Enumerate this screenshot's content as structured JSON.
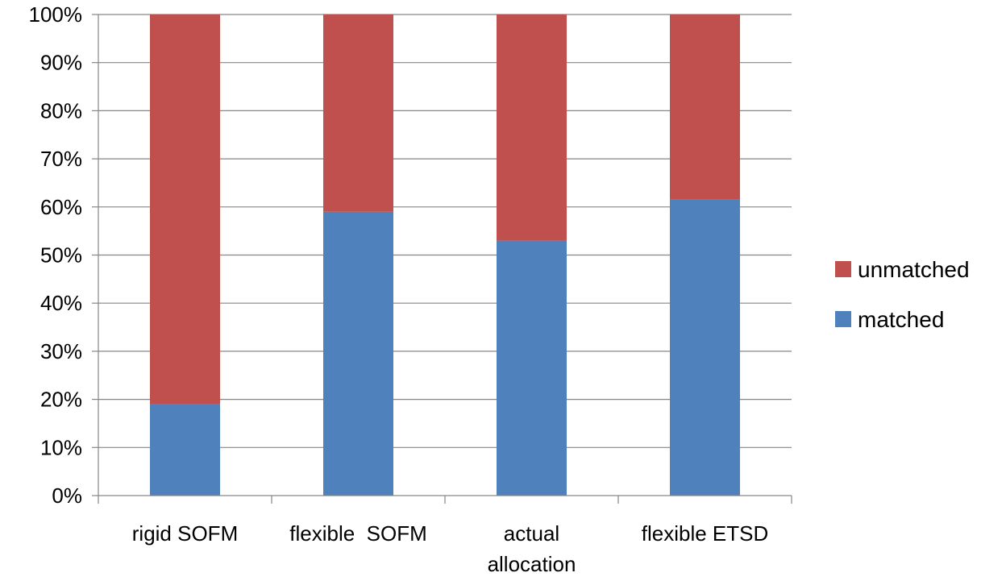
{
  "chart_data": {
    "type": "bar",
    "stacked": true,
    "percent_stacked": true,
    "categories": [
      [
        "rigid SOFM"
      ],
      [
        "flexible  SOFM"
      ],
      [
        "actual",
        "allocation"
      ],
      [
        "flexible ETSD"
      ]
    ],
    "series": [
      {
        "name": "matched",
        "values": [
          19,
          59,
          53,
          61.5
        ],
        "color": "#4f81bd"
      },
      {
        "name": "unmatched",
        "values": [
          81,
          41,
          47,
          38.5
        ],
        "color": "#c0504d"
      }
    ],
    "ylim": [
      0,
      100
    ],
    "yticks": [
      "0%",
      "10%",
      "20%",
      "30%",
      "40%",
      "50%",
      "60%",
      "70%",
      "80%",
      "90%",
      "100%"
    ],
    "grid": true,
    "legend_position": "right",
    "legend_order": [
      "unmatched",
      "matched"
    ],
    "title": "",
    "xlabel": "",
    "ylabel": ""
  }
}
